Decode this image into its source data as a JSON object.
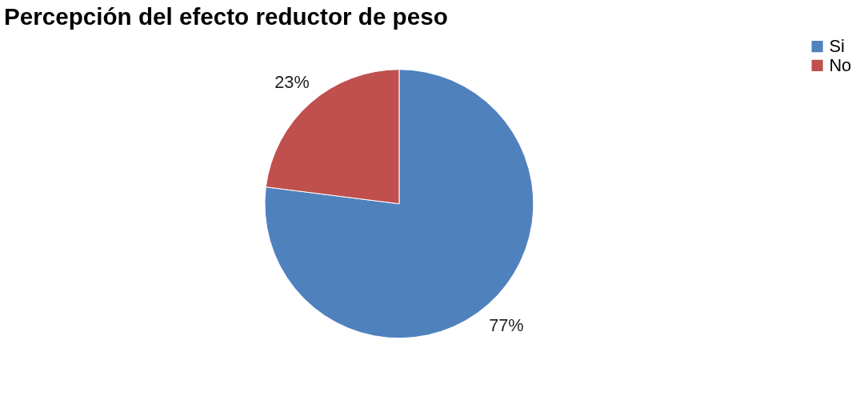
{
  "chart_data": {
    "type": "pie",
    "title": "Percepción del efecto reductor de peso",
    "categories": [
      "Si",
      "No"
    ],
    "values": [
      77,
      23
    ],
    "colors": [
      "#4f81bd",
      "#c0504d"
    ],
    "value_labels": [
      "77%",
      "23%"
    ],
    "legend": "right"
  }
}
